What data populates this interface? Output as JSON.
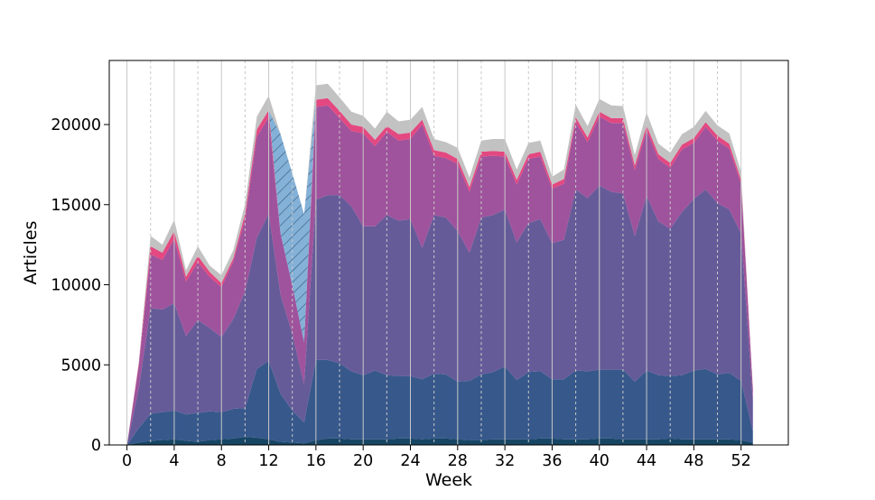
{
  "chart_data": {
    "type": "area",
    "stacked": true,
    "xlabel": "Week",
    "ylabel": "Articles",
    "xlim": [
      -1.5,
      56
    ],
    "ylim": [
      0,
      24000
    ],
    "x_ticks": [
      0,
      4,
      8,
      12,
      16,
      20,
      24,
      28,
      32,
      36,
      40,
      44,
      48,
      52
    ],
    "y_ticks": [
      0,
      5000,
      10000,
      15000,
      20000
    ],
    "x_tick_labels": [
      "0",
      "4",
      "8",
      "12",
      "16",
      "20",
      "24",
      "28",
      "32",
      "36",
      "40",
      "44",
      "48",
      "52"
    ],
    "y_tick_labels": [
      "0",
      "5000",
      "10000",
      "15000",
      "20000"
    ],
    "grid": {
      "major_x": "solid",
      "minor_x": "dashed"
    },
    "x": [
      0,
      1,
      2,
      3,
      4,
      5,
      6,
      7,
      8,
      9,
      10,
      11,
      12,
      13,
      14,
      15,
      16,
      17,
      18,
      19,
      20,
      21,
      22,
      23,
      24,
      25,
      26,
      27,
      28,
      29,
      30,
      31,
      32,
      33,
      34,
      35,
      36,
      37,
      38,
      39,
      40,
      41,
      42,
      43,
      44,
      45,
      46,
      47,
      48,
      49,
      50,
      51,
      52,
      53
    ],
    "series": [
      {
        "color": "#0b3c5d",
        "values": [
          0,
          150,
          250,
          300,
          350,
          250,
          200,
          300,
          350,
          400,
          500,
          450,
          350,
          200,
          150,
          100,
          300,
          400,
          400,
          350,
          350,
          350,
          350,
          400,
          400,
          350,
          400,
          400,
          350,
          300,
          300,
          350,
          350,
          350,
          350,
          400,
          400,
          350,
          350,
          350,
          400,
          400,
          350,
          350,
          350,
          350,
          400,
          350,
          350,
          350,
          350,
          350,
          300,
          150
        ]
      },
      {
        "color": "#2c4f85",
        "values": [
          0,
          900,
          1700,
          1750,
          1800,
          1650,
          1800,
          1800,
          1700,
          1850,
          1800,
          4300,
          4900,
          3000,
          2000,
          1300,
          5000,
          4900,
          4700,
          4250,
          4000,
          4300,
          4000,
          3900,
          3900,
          3750,
          4050,
          4000,
          3600,
          3700,
          4100,
          4200,
          4550,
          3700,
          4200,
          4200,
          3700,
          3750,
          4300,
          4250,
          4300,
          4300,
          4350,
          3600,
          4300,
          4000,
          3900,
          4000,
          4300,
          4400,
          4050,
          4150,
          3700,
          700
        ]
      },
      {
        "color": "#5e5293",
        "values": [
          0,
          2500,
          6600,
          6400,
          6700,
          4900,
          5800,
          5200,
          4700,
          5600,
          7300,
          8200,
          9200,
          6200,
          4800,
          2400,
          10000,
          10300,
          10500,
          10300,
          9300,
          9000,
          10000,
          9700,
          9800,
          8200,
          9900,
          9800,
          9400,
          8000,
          9800,
          9800,
          9800,
          8600,
          9300,
          9500,
          8500,
          8700,
          11300,
          10800,
          11500,
          11100,
          11000,
          9100,
          10900,
          9600,
          9200,
          10200,
          10700,
          11200,
          10700,
          10200,
          9200,
          1900
        ]
      },
      {
        "color": "#9a4a97",
        "values": [
          0,
          1400,
          3350,
          3100,
          4000,
          3400,
          3600,
          3200,
          3100,
          3600,
          4500,
          6300,
          6000,
          3800,
          3000,
          2600,
          5800,
          5600,
          4800,
          4700,
          5800,
          5000,
          5200,
          5000,
          5000,
          7700,
          3700,
          3700,
          4200,
          3800,
          3800,
          3700,
          3300,
          3600,
          4000,
          3900,
          3400,
          3500,
          4200,
          3500,
          4300,
          4300,
          4400,
          4100,
          4100,
          3900,
          3800,
          3900,
          3500,
          3900,
          3900,
          3800,
          3100,
          700
        ]
      },
      {
        "color": "#e13e7a",
        "values": [
          0,
          150,
          500,
          450,
          500,
          300,
          400,
          300,
          250,
          200,
          350,
          450,
          450,
          0,
          0,
          0,
          450,
          450,
          450,
          400,
          400,
          400,
          350,
          400,
          400,
          300,
          350,
          350,
          300,
          300,
          300,
          300,
          300,
          300,
          300,
          300,
          250,
          300,
          300,
          300,
          300,
          300,
          300,
          300,
          300,
          300,
          300,
          300,
          300,
          300,
          300,
          300,
          250,
          50
        ]
      },
      {
        "color": "#6fa3d0",
        "hatched": true,
        "values": [
          0,
          0,
          0,
          0,
          0,
          0,
          0,
          0,
          0,
          0,
          0,
          0,
          0,
          6200,
          7000,
          8000,
          0,
          0,
          0,
          0,
          0,
          0,
          0,
          0,
          0,
          0,
          0,
          0,
          0,
          0,
          0,
          0,
          0,
          0,
          0,
          0,
          0,
          0,
          0,
          0,
          0,
          0,
          0,
          0,
          0,
          0,
          0,
          0,
          0,
          0,
          0,
          0,
          0,
          0
        ]
      },
      {
        "color": "#bfbfbf",
        "values": [
          0,
          100,
          650,
          500,
          700,
          400,
          600,
          400,
          500,
          500,
          600,
          800,
          900,
          0,
          0,
          0,
          900,
          900,
          850,
          800,
          700,
          700,
          900,
          800,
          800,
          800,
          700,
          650,
          700,
          600,
          700,
          750,
          800,
          650,
          700,
          700,
          500,
          600,
          800,
          700,
          800,
          800,
          750,
          650,
          800,
          650,
          650,
          650,
          700,
          700,
          650,
          650,
          500,
          0
        ]
      }
    ]
  }
}
